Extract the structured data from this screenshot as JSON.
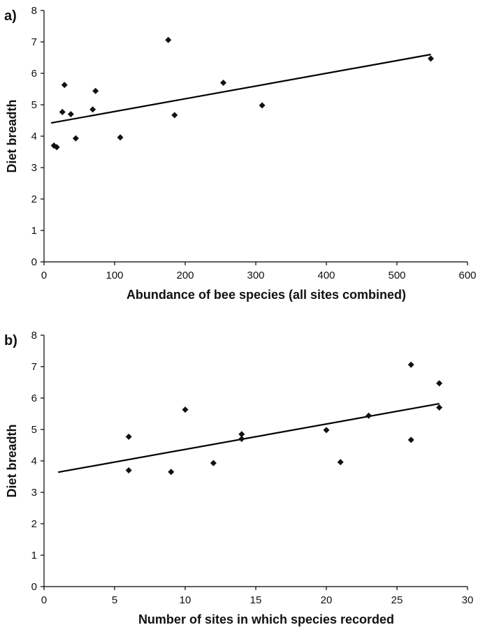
{
  "chart_data": [
    {
      "type": "scatter",
      "panel_label": "a)",
      "xlabel": "Abundance of bee species (all sites combined)",
      "ylabel": "Diet breadth",
      "xlim": [
        0,
        600
      ],
      "ylim": [
        0,
        8
      ],
      "xticks": [
        0,
        100,
        200,
        300,
        400,
        500,
        600
      ],
      "yticks": [
        0,
        1,
        2,
        3,
        4,
        5,
        6,
        7,
        8
      ],
      "grid": false,
      "legend": "none",
      "points": [
        {
          "x": 14,
          "y": 3.7
        },
        {
          "x": 18,
          "y": 3.65
        },
        {
          "x": 26,
          "y": 4.77
        },
        {
          "x": 29,
          "y": 5.63
        },
        {
          "x": 38,
          "y": 4.7
        },
        {
          "x": 45,
          "y": 3.93
        },
        {
          "x": 69,
          "y": 4.85
        },
        {
          "x": 73,
          "y": 5.44
        },
        {
          "x": 108,
          "y": 3.96
        },
        {
          "x": 176,
          "y": 7.06
        },
        {
          "x": 185,
          "y": 4.67
        },
        {
          "x": 254,
          "y": 5.7
        },
        {
          "x": 309,
          "y": 4.98
        },
        {
          "x": 548,
          "y": 6.47
        }
      ],
      "trendline": {
        "x": [
          10,
          548
        ],
        "y": [
          4.42,
          6.6
        ]
      }
    },
    {
      "type": "scatter",
      "panel_label": "b)",
      "xlabel": "Number of sites in which species recorded",
      "ylabel": "Diet breadth",
      "xlim": [
        0,
        30
      ],
      "ylim": [
        0,
        8
      ],
      "xticks": [
        0,
        5,
        10,
        15,
        20,
        25,
        30
      ],
      "yticks": [
        0,
        1,
        2,
        3,
        4,
        5,
        6,
        7,
        8
      ],
      "grid": false,
      "legend": "none",
      "points": [
        {
          "x": 6,
          "y": 4.77
        },
        {
          "x": 6,
          "y": 3.7
        },
        {
          "x": 9,
          "y": 3.65
        },
        {
          "x": 10,
          "y": 5.63
        },
        {
          "x": 12,
          "y": 3.93
        },
        {
          "x": 14,
          "y": 4.85
        },
        {
          "x": 14,
          "y": 4.7
        },
        {
          "x": 20,
          "y": 4.98
        },
        {
          "x": 21,
          "y": 3.96
        },
        {
          "x": 23,
          "y": 5.44
        },
        {
          "x": 26,
          "y": 7.06
        },
        {
          "x": 26,
          "y": 4.67
        },
        {
          "x": 28,
          "y": 6.47
        },
        {
          "x": 28,
          "y": 5.7
        }
      ],
      "trendline": {
        "x": [
          1,
          28
        ],
        "y": [
          3.64,
          5.82
        ]
      }
    }
  ]
}
